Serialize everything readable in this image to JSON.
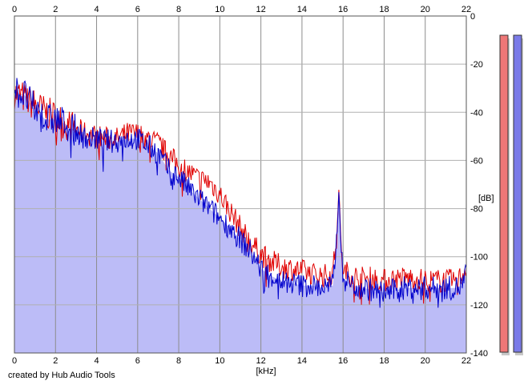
{
  "credit": "created by Hub Audio Tools",
  "chart_data": {
    "type": "area",
    "xlabel": "[kHz]",
    "ylabel": "[dB]",
    "xlim": [
      0,
      22
    ],
    "ylim": [
      -140,
      0
    ],
    "grid": true,
    "x_ticks": [
      "0",
      "2",
      "4",
      "6",
      "8",
      "10",
      "12",
      "14",
      "16",
      "18",
      "20",
      "22"
    ],
    "y_ticks": [
      "0",
      "-20",
      "-40",
      "-60",
      "-80",
      "-100",
      "-120",
      "-140"
    ],
    "x": [
      0,
      0.5,
      1,
      1.5,
      2,
      2.5,
      3,
      3.5,
      4,
      4.5,
      5,
      5.5,
      6,
      6.5,
      7,
      7.5,
      8,
      8.5,
      9,
      9.5,
      10,
      10.5,
      11,
      11.5,
      12,
      12.5,
      13,
      13.5,
      14,
      14.5,
      15,
      15.5,
      15.7,
      15.8,
      15.9,
      16,
      16.5,
      17,
      17.5,
      18,
      18.5,
      19,
      19.5,
      20,
      20.5,
      21,
      21.5,
      21.8,
      22
    ],
    "series": [
      {
        "color": "#e00000",
        "values": [
          -32,
          -34,
          -37,
          -40,
          -42,
          -45,
          -47,
          -49,
          -50,
          -51,
          -51,
          -49,
          -49,
          -51,
          -53,
          -58,
          -62,
          -65,
          -68,
          -69,
          -74,
          -81,
          -88,
          -94,
          -99,
          -102,
          -104,
          -105,
          -106,
          -107,
          -108,
          -107,
          -90,
          -71,
          -95,
          -106,
          -108,
          -109,
          -109,
          -110,
          -109,
          -109,
          -109,
          -110,
          -110,
          -110,
          -110,
          -108,
          -103
        ]
      },
      {
        "color": "#0000cc",
        "values": [
          -31,
          -33,
          -39,
          -43,
          -43,
          -45,
          -48,
          -51,
          -51,
          -52,
          -52,
          -51,
          -51,
          -54,
          -57,
          -64,
          -67,
          -72,
          -76,
          -80,
          -84,
          -88,
          -93,
          -98,
          -105,
          -108,
          -110,
          -111,
          -112,
          -112,
          -113,
          -112,
          -92,
          -72,
          -97,
          -109,
          -112,
          -113,
          -114,
          -115,
          -114,
          -113,
          -113,
          -113,
          -113,
          -113,
          -113,
          -112,
          -106
        ]
      }
    ],
    "level_meters": [
      {
        "color": "#ee7777"
      },
      {
        "color": "#7b7be8"
      }
    ]
  }
}
